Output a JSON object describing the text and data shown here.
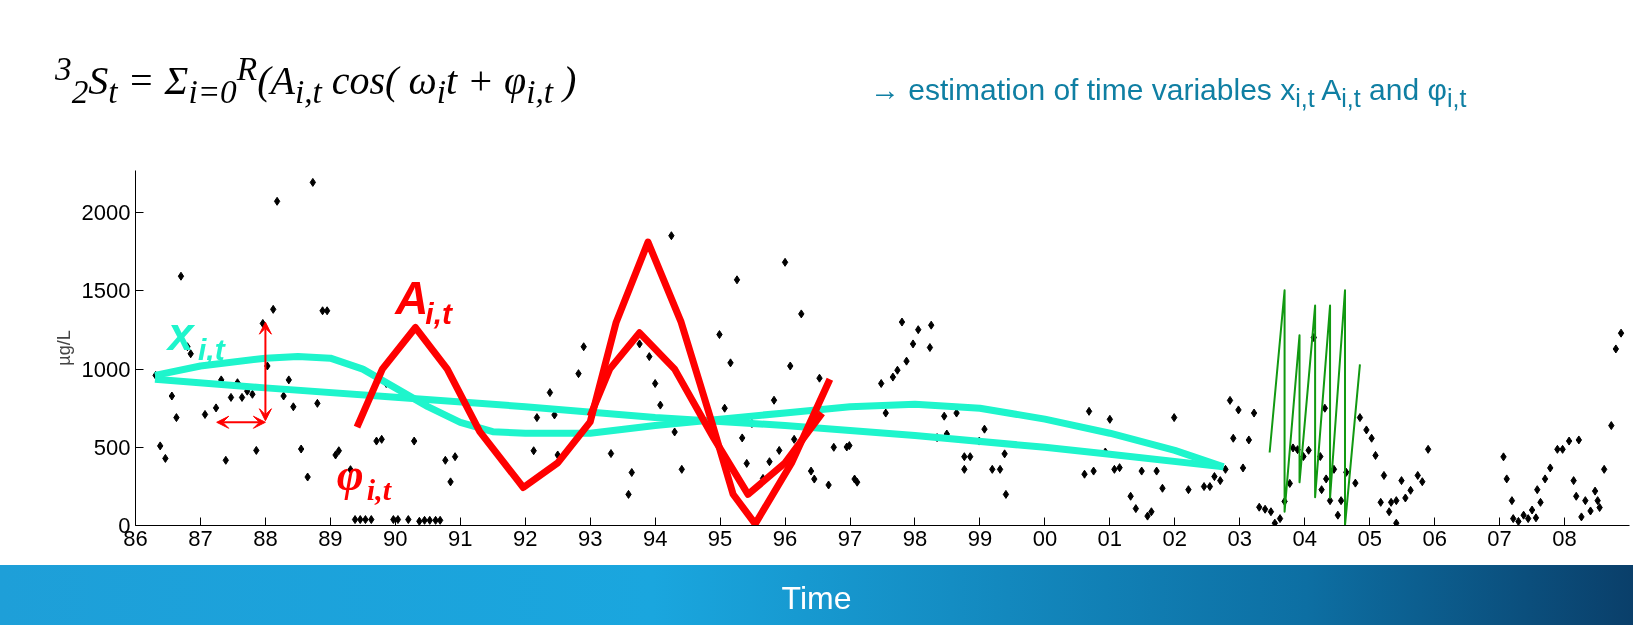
{
  "chart_data": {
    "type": "scatter",
    "title": "$^{3}$$_{2}$S$_{t}$ = Σ$_{i=0}$$^{R}$(A$_{i,t}$ cos( ω$_{i}$t + φ$_{i,t}$ )",
    "subtitle": "→ estimation of time variables x$_{i,t}$  A$_{i,t}$ and φ$_{i,t}$",
    "xlabel": "Time",
    "ylabel": "µg/L",
    "xlim": [
      1986,
      2009
    ],
    "ylim": [
      0,
      2270
    ],
    "xticks": [
      {
        "value": 1986,
        "label": "86"
      },
      {
        "value": 1987,
        "label": "87"
      },
      {
        "value": 1988,
        "label": "88"
      },
      {
        "value": 1989,
        "label": "89"
      },
      {
        "value": 1990,
        "label": "90"
      },
      {
        "value": 1991,
        "label": "91"
      },
      {
        "value": 1992,
        "label": "92"
      },
      {
        "value": 1993,
        "label": "93"
      },
      {
        "value": 1994,
        "label": "94"
      },
      {
        "value": 1995,
        "label": "95"
      },
      {
        "value": 1996,
        "label": "96"
      },
      {
        "value": 1997,
        "label": "97"
      },
      {
        "value": 1998,
        "label": "98"
      },
      {
        "value": 1999,
        "label": "99"
      },
      {
        "value": 2000,
        "label": "00"
      },
      {
        "value": 2001,
        "label": "01"
      },
      {
        "value": 2002,
        "label": "02"
      },
      {
        "value": 2003,
        "label": "03"
      },
      {
        "value": 2004,
        "label": "04"
      },
      {
        "value": 2005,
        "label": "05"
      },
      {
        "value": 2006,
        "label": "06"
      },
      {
        "value": 2007,
        "label": "07"
      },
      {
        "value": 2008,
        "label": "08"
      }
    ],
    "yticks": [
      0,
      500,
      1000,
      1500,
      2000
    ],
    "grid": false,
    "annotations": [
      "x$_{i,t}$",
      "A$_{i,t}$",
      "φ$_{i,t}$"
    ],
    "series": [
      {
        "color": "#000000",
        "marker": "diamond",
        "x": [
          1986.31,
          1986.38,
          1986.46,
          1986.56,
          1986.63,
          1986.7,
          1986.8,
          1986.85,
          1987.07,
          1987.24,
          1987.32,
          1987.39,
          1987.47,
          1987.57,
          1987.64,
          1987.72,
          1987.8,
          1987.86,
          1987.96,
          1988.03,
          1988.12,
          1988.18,
          1988.28,
          1988.36,
          1988.43,
          1988.55,
          1988.65,
          1988.73,
          1988.8,
          1988.88,
          1988.95,
          1989.08,
          1989.13,
          1989.31,
          1989.38,
          1989.46,
          1989.54,
          1989.63,
          1989.71,
          1989.79,
          1989.86,
          1989.97,
          1990.04,
          1990.2,
          1990.29,
          1990.37,
          1990.45,
          1990.53,
          1990.62,
          1990.69,
          1990.77,
          1990.85,
          1990.92,
          1992.13,
          1992.18,
          1992.38,
          1992.45,
          1992.5,
          1992.82,
          1992.9,
          1993.32,
          1993.59,
          1993.64,
          1993.76,
          1993.91,
          1994.0,
          1994.08,
          1994.25,
          1994.3,
          1994.41,
          1994.99,
          1995.07,
          1995.16,
          1995.26,
          1995.34,
          1995.41,
          1995.49,
          1995.66,
          1995.76,
          1995.83,
          1995.91,
          1996.0,
          1996.08,
          1996.14,
          1996.25,
          1996.4,
          1996.45,
          1996.53,
          1996.67,
          1996.75,
          1996.95,
          1996.99,
          1997.07,
          1997.11,
          1997.48,
          1997.55,
          1997.66,
          1997.73,
          1997.8,
          1997.87,
          1997.97,
          1998.05,
          1998.23,
          1998.25,
          1998.34,
          1998.45,
          1998.49,
          1998.64,
          1998.76,
          1998.76,
          1998.85,
          1998.99,
          1999.07,
          1999.19,
          1999.31,
          1999.38,
          1999.4,
          2000.61,
          2000.68,
          2000.75,
          2000.93,
          2001.0,
          2001.07,
          2001.15,
          2001.32,
          2001.4,
          2001.58,
          2001.64,
          2001.49,
          2001.72,
          2001.81,
          2001.99,
          2002.21,
          2002.45,
          2002.54,
          2002.61,
          2002.7,
          2002.78,
          2002.85,
          2002.9,
          2002.98,
          2003.05,
          2003.14,
          2003.22,
          2003.3,
          2003.39,
          2003.48,
          2003.54,
          2003.62,
          2003.69,
          2003.77,
          2003.82,
          2003.89,
          2003.98,
          2004.06,
          2004.14,
          2004.24,
          2004.26,
          2004.31,
          2004.33,
          2004.39,
          2004.45,
          2004.51,
          2004.56,
          2004.64,
          2004.78,
          2004.85,
          2004.95,
          2005.03,
          2005.09,
          2005.17,
          2005.22,
          2005.3,
          2005.33,
          2005.41,
          2005.41,
          2005.49,
          2005.55,
          2005.63,
          2005.74,
          2005.81,
          2005.9,
          2007.06,
          2007.11,
          2007.19,
          2007.21,
          2007.29,
          2007.37,
          2007.44,
          2007.5,
          2007.56,
          2007.58,
          2007.63,
          2007.7,
          2007.78,
          2007.89,
          2007.97,
          2008.07,
          2008.14,
          2008.18,
          2008.22,
          2008.26,
          2008.32,
          2008.4,
          2008.47,
          2008.51,
          2008.54,
          2008.61,
          2008.72,
          2008.79,
          2008.87
        ],
        "values": [
          960,
          509,
          429,
          828,
          690,
          1594,
          1143,
          1098,
          710,
          752,
          931,
          417,
          819,
          913,
          819,
          859,
          839,
          480,
          1292,
          1020,
          1382,
          2073,
          828,
          931,
          759,
          489,
          310,
          2194,
          781,
          1373,
          1373,
          451,
          478,
          357,
          38,
          38,
          38,
          38,
          540,
          551,
          908,
          38,
          38,
          38,
          540,
          27,
          33,
          33,
          33,
          33,
          417,
          279,
          440,
          478,
          690,
          850,
          707,
          451,
          971,
          1143,
          460,
          199,
          339,
          1161,
          1080,
          908,
          770,
          1853,
          598,
          359,
          1221,
          750,
          1040,
          1571,
          560,
          397,
          652,
          301,
          408,
          801,
          480,
          1683,
          1020,
          551,
          1353,
          348,
          297,
          942,
          259,
          500,
          502,
          511,
          297,
          277,
          908,
          719,
          949,
          993,
          1301,
          1051,
          1161,
          1252,
          1138,
          1281,
          562,
          699,
          585,
          719,
          359,
          440,
          440,
          540,
          616,
          359,
          359,
          458,
          199,
          328,
          730,
          348,
          470,
          679,
          359,
          370,
          187,
          108,
          60,
          88,
          348,
          348,
          238,
          690,
          229,
          249,
          249,
          313,
          287,
          359,
          800,
          558,
          739,
          368,
          547,
          719,
          117,
          104,
          88,
          15,
          44,
          154,
          269,
          496,
          485,
          441,
          481,
          1202,
          441,
          229,
          750,
          298,
          159,
          359,
          66,
          159,
          340,
          271,
          690,
          611,
          558,
          448,
          148,
          320,
          88,
          148,
          159,
          15,
          287,
          176,
          225,
          320,
          280,
          487,
          439,
          298,
          159,
          44,
          26,
          66,
          44,
          99,
          49,
          229,
          148,
          298,
          368,
          487,
          487,
          540,
          287,
          187,
          547,
          55,
          159,
          93,
          220,
          159,
          115,
          359,
          639,
          1129,
          1230
        ]
      },
      {
        "type": "line",
        "color": "#1ef5cc",
        "x": [
          1986.3,
          1988,
          1990,
          1992,
          1994,
          1996,
          1998,
          2000,
          2001,
          2002.75
        ],
        "values": [
          935,
          880,
          820,
          760,
          690,
          640,
          575,
          500,
          455,
          375
        ]
      },
      {
        "type": "line",
        "color": "#1ef5cc",
        "x": [
          1986.3,
          1987,
          1988,
          1988.5,
          1989,
          1989.5,
          1990,
          1990.5,
          1991,
          1991.5,
          1992,
          1993,
          1994,
          1995,
          1996,
          1997,
          1998,
          1999,
          2000,
          2001,
          2002,
          2002.75
        ],
        "values": [
          960,
          1020,
          1070,
          1080,
          1070,
          1000,
          880,
          760,
          660,
          600,
          590,
          590,
          640,
          680,
          720,
          760,
          775,
          750,
          680,
          590,
          480,
          375
        ]
      },
      {
        "type": "line",
        "color": "#ff0000",
        "x": [
          1989.41,
          1989.8,
          1990.31,
          1990.8,
          1991.3,
          1991.97,
          1992.5,
          1993.0,
          1993.4,
          1993.89,
          1994.4,
          1994.87,
          1995.2,
          1995.54,
          1996.1,
          1996.69
        ],
        "values": [
          629,
          1000,
          1266,
          1000,
          600,
          243,
          400,
          663,
          1300,
          1812,
          1300,
          663,
          200,
          10,
          400,
          935
        ]
      },
      {
        "type": "line",
        "color": "#ff0000",
        "x": [
          1993.0,
          1993.3,
          1993.76,
          1994.3,
          1994.9,
          1995.43,
          1996.0,
          1996.57
        ],
        "values": [
          700,
          1000,
          1232,
          1000,
          560,
          199,
          400,
          719
        ]
      },
      {
        "type": "line",
        "color": "#119911",
        "x": [
          2003.46,
          2003.69,
          2003.69,
          2003.92,
          2003.92,
          2004.16,
          2004.16,
          2004.39,
          2004.39,
          2004.62,
          2004.62,
          2004.85
        ],
        "values": [
          467,
          1504,
          88,
          1217,
          276,
          1406,
          181,
          1406,
          176,
          1504,
          0,
          1030
        ]
      }
    ]
  }
}
